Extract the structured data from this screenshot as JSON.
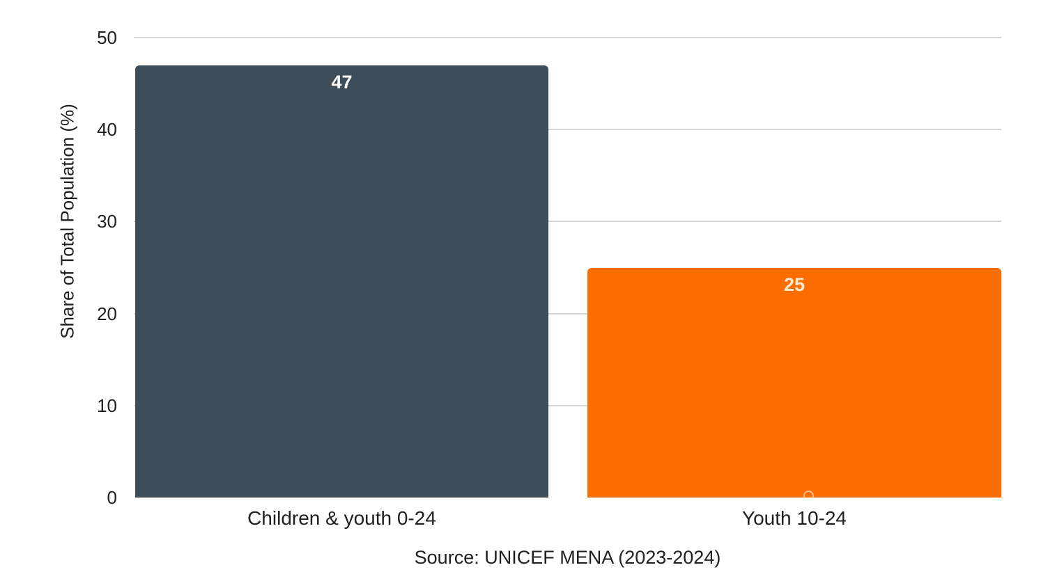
{
  "chart_data": {
    "type": "bar",
    "title": "",
    "ylabel": "Share of Total Population (%)",
    "xlabel": "",
    "categories": [
      "Children & youth 0-24",
      "Youth 10-24"
    ],
    "values": [
      47,
      25
    ],
    "value_labels": [
      "47",
      "25"
    ],
    "ytick_labels": [
      "0",
      "10",
      "20",
      "30",
      "40",
      "50"
    ],
    "yticks": [
      0,
      10,
      20,
      30,
      40,
      50
    ],
    "ylim": [
      0,
      50
    ],
    "grid": true,
    "legend_position": "none",
    "bar_colors": [
      "#3d4e5a",
      "#fb6d00"
    ],
    "value_label_colors": [
      "#ffffff",
      "#f7e9ce"
    ],
    "gridline_color": "#d5d5d5",
    "text_color": "#1f1f1f",
    "source": "Source: UNICEF MENA (2023-2024)"
  }
}
